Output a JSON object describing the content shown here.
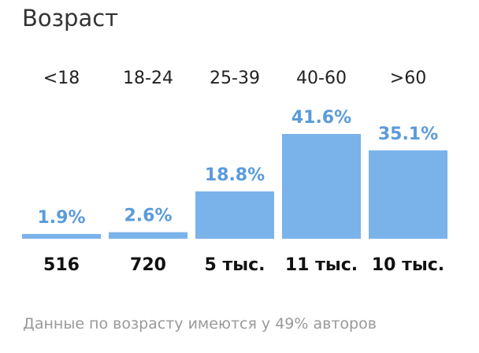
{
  "title": "Возраст",
  "footnote": "Данные по возрасту имеются у 49% авторов",
  "colors": {
    "bar": "#7ab3ea",
    "percent_label": "#5b9bd9",
    "category_label": "#222222",
    "count_label": "#111111"
  },
  "chart_data": {
    "type": "bar",
    "categories": [
      "<18",
      "18-24",
      "25-39",
      "40-60",
      ">60"
    ],
    "values": [
      1.9,
      2.6,
      18.8,
      41.6,
      35.1
    ],
    "value_labels": [
      "1.9%",
      "2.6%",
      "18.8%",
      "41.6%",
      "35.1%"
    ],
    "counts": [
      "516",
      "720",
      "5 тыс.",
      "11 тыс.",
      "10 тыс."
    ],
    "ylim": [
      0,
      41.6
    ],
    "grid": false,
    "legend": "none"
  }
}
